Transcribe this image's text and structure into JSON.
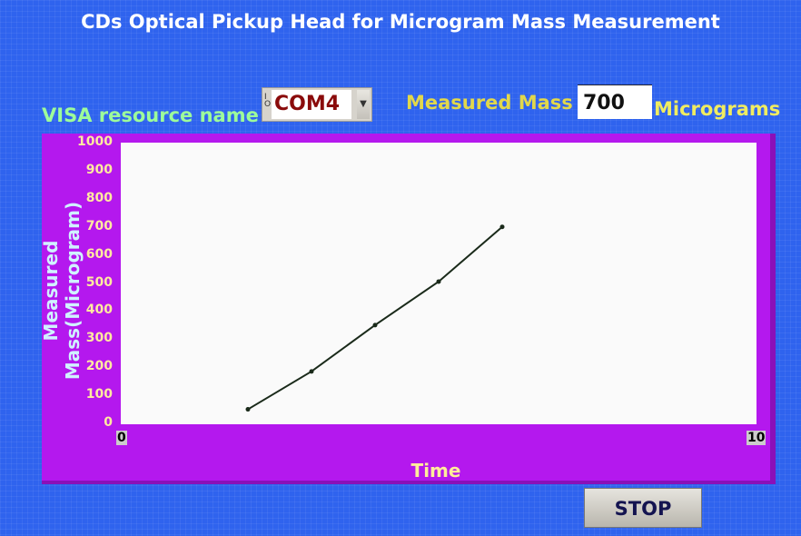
{
  "window": {
    "title": "CDs Optical Pickup Head for Microgram Mass Measurement"
  },
  "controls": {
    "visa_label": "VISA resource name",
    "visa_value": "COM4",
    "visa_prefix_icon": "visa-io-icon",
    "measured_label": "Measured Mass",
    "measured_value": "700",
    "measured_unit": "Micrograms",
    "stop_label": "STOP"
  },
  "colors": {
    "panel": "#2f63ee",
    "graph_frame": "#b418ee",
    "plot_bg": "#fafafa",
    "line": "#1a2a1a"
  },
  "chart_data": {
    "type": "line",
    "title": "",
    "xlabel": "Time",
    "ylabel": "Measured Mass(Microgram)",
    "xlim": [
      0,
      10
    ],
    "ylim": [
      0,
      1000
    ],
    "x_ticks": [
      "0",
      "10"
    ],
    "y_ticks": [
      "0",
      "100",
      "200",
      "300",
      "400",
      "500",
      "600",
      "700",
      "800",
      "900",
      "1000"
    ],
    "grid": false,
    "series": [
      {
        "name": "Measured Mass",
        "x": [
          2,
          3,
          4,
          5,
          6
        ],
        "values": [
          50,
          185,
          350,
          505,
          700
        ]
      }
    ]
  }
}
